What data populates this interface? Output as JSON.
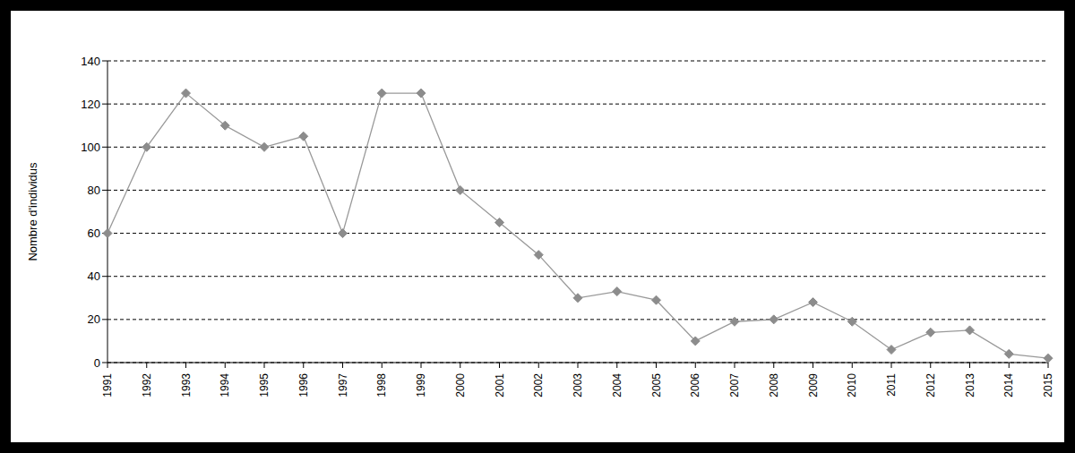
{
  "chart_data": {
    "type": "line",
    "y_label": "Nombre d'individus",
    "categories": [
      "1991",
      "1992",
      "1993",
      "1994",
      "1995",
      "1996",
      "1997",
      "1998",
      "1999",
      "2000",
      "2001",
      "2002",
      "2003",
      "2004",
      "2005",
      "2006",
      "2007",
      "2008",
      "2009",
      "2010",
      "2011",
      "2012",
      "2013",
      "2014",
      "2015"
    ],
    "values": [
      60,
      100,
      125,
      110,
      100,
      105,
      60,
      125,
      125,
      80,
      65,
      50,
      30,
      33,
      29,
      10,
      19,
      20,
      28,
      19,
      6,
      14,
      15,
      4,
      2
    ],
    "color": "#999999",
    "marker": "diamond",
    "line_style": "solid",
    "ylim": [
      0,
      140
    ],
    "yticks": [
      0,
      20,
      40,
      60,
      80,
      100,
      120,
      140
    ],
    "grid": true
  }
}
